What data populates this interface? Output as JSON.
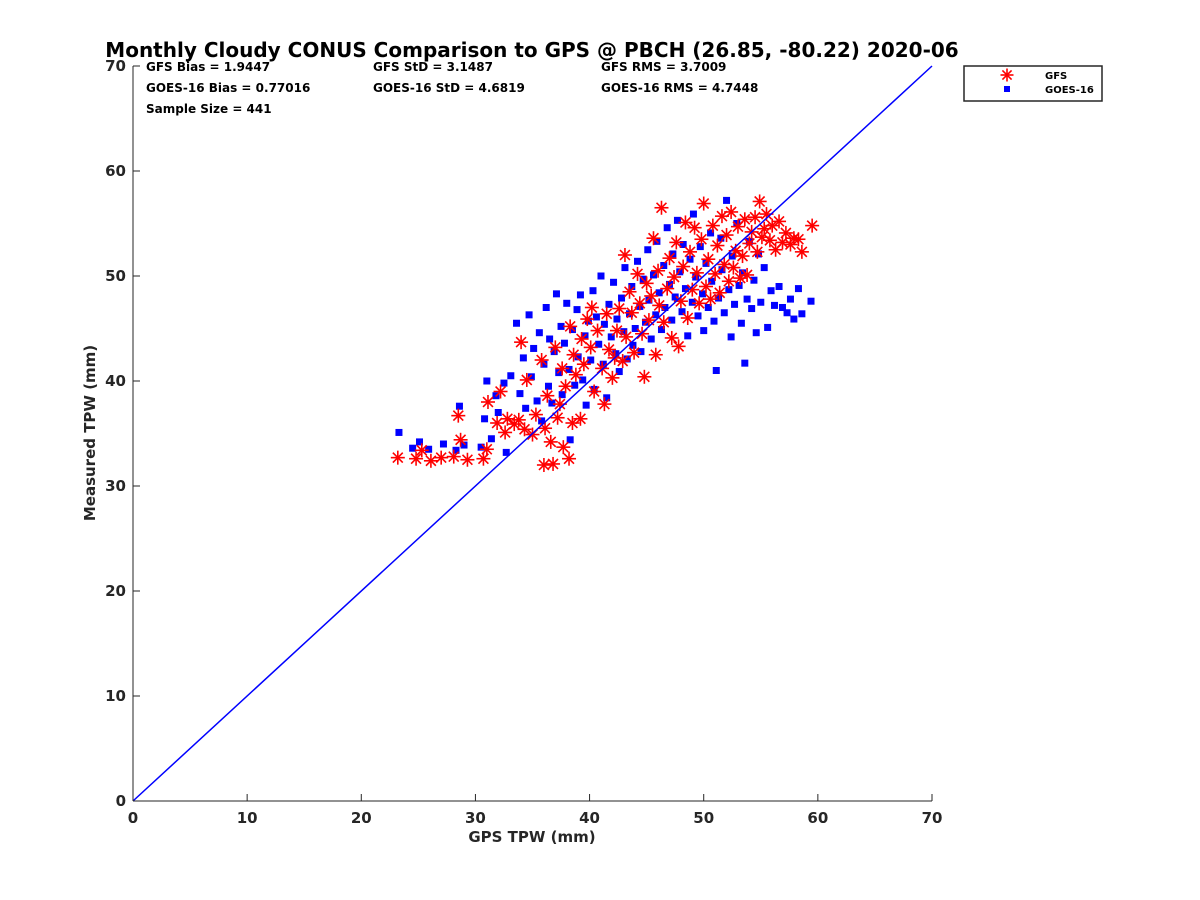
{
  "chart_data": {
    "type": "scatter",
    "title": "Monthly Cloudy CONUS Comparison to GPS @ PBCH (26.85, -80.22) 2020-06",
    "xlabel": "GPS TPW (mm)",
    "ylabel": "Measured TPW (mm)",
    "xlim": [
      0,
      70
    ],
    "ylim": [
      0,
      70
    ],
    "xticks": [
      0,
      10,
      20,
      30,
      40,
      50,
      60,
      70
    ],
    "yticks": [
      0,
      10,
      20,
      30,
      40,
      50,
      60,
      70
    ],
    "grid": false,
    "legend_position": "top-right, outside",
    "reference_line": {
      "name": "1:1 line",
      "x": [
        0,
        70
      ],
      "y": [
        0,
        70
      ],
      "color": "#0000ff"
    },
    "stats": {
      "gfs_bias": "GFS Bias = 1.9447",
      "gfs_std": "GFS StD = 3.1487",
      "gfs_rms": "GFS RMS = 3.7009",
      "goes_bias": "GOES-16 Bias = 0.77016",
      "goes_std": "GOES-16 StD = 4.6819",
      "goes_rms": "GOES-16 RMS = 4.7448",
      "sample_size": "Sample Size = 441"
    },
    "series": [
      {
        "name": "GFS",
        "marker": "asterisk",
        "color": "#ff0000",
        "points": [
          [
            23.2,
            32.7
          ],
          [
            24.8,
            32.6
          ],
          [
            25.3,
            33.4
          ],
          [
            26.1,
            32.4
          ],
          [
            27.0,
            32.7
          ],
          [
            28.1,
            32.8
          ],
          [
            28.5,
            36.7
          ],
          [
            28.7,
            34.4
          ],
          [
            29.3,
            32.5
          ],
          [
            30.7,
            32.6
          ],
          [
            31.0,
            33.5
          ],
          [
            31.1,
            38.0
          ],
          [
            31.9,
            36.0
          ],
          [
            32.2,
            39.0
          ],
          [
            32.6,
            35.1
          ],
          [
            32.8,
            36.4
          ],
          [
            33.4,
            35.9
          ],
          [
            33.8,
            36.3
          ],
          [
            34.0,
            43.7
          ],
          [
            34.3,
            35.4
          ],
          [
            34.5,
            40.1
          ],
          [
            35.0,
            34.9
          ],
          [
            35.3,
            36.8
          ],
          [
            35.8,
            42.0
          ],
          [
            36.0,
            32.0
          ],
          [
            36.1,
            35.5
          ],
          [
            36.3,
            38.6
          ],
          [
            36.6,
            34.2
          ],
          [
            36.8,
            32.1
          ],
          [
            37.0,
            43.2
          ],
          [
            37.2,
            36.5
          ],
          [
            37.4,
            37.8
          ],
          [
            37.6,
            41.2
          ],
          [
            37.7,
            33.7
          ],
          [
            37.9,
            39.5
          ],
          [
            38.2,
            32.6
          ],
          [
            38.3,
            45.2
          ],
          [
            38.5,
            36.0
          ],
          [
            38.6,
            42.5
          ],
          [
            38.8,
            40.6
          ],
          [
            39.2,
            36.4
          ],
          [
            39.3,
            44.0
          ],
          [
            39.5,
            41.6
          ],
          [
            39.8,
            45.9
          ],
          [
            40.1,
            43.2
          ],
          [
            40.2,
            47.0
          ],
          [
            40.4,
            39.0
          ],
          [
            40.7,
            44.8
          ],
          [
            41.1,
            41.2
          ],
          [
            41.3,
            37.8
          ],
          [
            41.5,
            46.4
          ],
          [
            41.7,
            43.0
          ],
          [
            42.0,
            40.3
          ],
          [
            42.2,
            42.2
          ],
          [
            42.4,
            44.8
          ],
          [
            42.6,
            46.9
          ],
          [
            42.9,
            41.9
          ],
          [
            43.1,
            52.0
          ],
          [
            43.2,
            44.2
          ],
          [
            43.5,
            48.5
          ],
          [
            43.7,
            46.5
          ],
          [
            43.9,
            42.7
          ],
          [
            44.2,
            50.2
          ],
          [
            44.4,
            47.4
          ],
          [
            44.6,
            44.5
          ],
          [
            44.8,
            40.4
          ],
          [
            45.0,
            49.3
          ],
          [
            45.2,
            45.8
          ],
          [
            45.4,
            48.1
          ],
          [
            45.6,
            53.6
          ],
          [
            45.8,
            42.5
          ],
          [
            46.0,
            50.5
          ],
          [
            46.1,
            47.2
          ],
          [
            46.3,
            56.5
          ],
          [
            46.5,
            45.6
          ],
          [
            46.8,
            48.8
          ],
          [
            47.0,
            51.7
          ],
          [
            47.2,
            44.1
          ],
          [
            47.4,
            49.9
          ],
          [
            47.6,
            53.2
          ],
          [
            47.8,
            43.3
          ],
          [
            48.0,
            47.6
          ],
          [
            48.2,
            50.9
          ],
          [
            48.4,
            55.1
          ],
          [
            48.6,
            46.0
          ],
          [
            48.8,
            52.3
          ],
          [
            49.0,
            48.7
          ],
          [
            49.2,
            54.6
          ],
          [
            49.4,
            50.3
          ],
          [
            49.6,
            47.4
          ],
          [
            49.8,
            53.5
          ],
          [
            50.0,
            56.9
          ],
          [
            50.2,
            49.0
          ],
          [
            50.4,
            51.6
          ],
          [
            50.6,
            47.8
          ],
          [
            50.8,
            54.8
          ],
          [
            51.0,
            50.2
          ],
          [
            51.2,
            52.9
          ],
          [
            51.4,
            48.4
          ],
          [
            51.6,
            55.7
          ],
          [
            51.8,
            51.1
          ],
          [
            52.0,
            53.9
          ],
          [
            52.2,
            49.5
          ],
          [
            52.4,
            56.1
          ],
          [
            52.6,
            50.8
          ],
          [
            52.8,
            52.4
          ],
          [
            53.0,
            54.7
          ],
          [
            53.2,
            49.8
          ],
          [
            53.4,
            51.9
          ],
          [
            53.6,
            55.4
          ],
          [
            53.8,
            50.1
          ],
          [
            54.0,
            53.1
          ],
          [
            54.2,
            54.2
          ],
          [
            54.5,
            55.6
          ],
          [
            54.7,
            52.3
          ],
          [
            54.9,
            57.1
          ],
          [
            55.1,
            53.7
          ],
          [
            55.3,
            54.5
          ],
          [
            55.5,
            55.9
          ],
          [
            55.8,
            53.4
          ],
          [
            56.0,
            54.8
          ],
          [
            56.3,
            52.5
          ],
          [
            56.6,
            55.2
          ],
          [
            56.9,
            53.2
          ],
          [
            57.2,
            54.1
          ],
          [
            57.6,
            53.0
          ],
          [
            57.9,
            53.6
          ],
          [
            58.3,
            53.5
          ],
          [
            58.6,
            52.3
          ],
          [
            59.5,
            54.8
          ]
        ]
      },
      {
        "name": "GOES-16",
        "marker": "square",
        "color": "#0000ff",
        "points": [
          [
            23.3,
            35.1
          ],
          [
            24.5,
            33.6
          ],
          [
            25.1,
            34.2
          ],
          [
            25.9,
            33.5
          ],
          [
            27.2,
            34.0
          ],
          [
            28.3,
            33.4
          ],
          [
            28.6,
            37.6
          ],
          [
            29.0,
            33.9
          ],
          [
            30.5,
            33.7
          ],
          [
            30.8,
            36.4
          ],
          [
            31.0,
            40.0
          ],
          [
            31.4,
            34.5
          ],
          [
            31.8,
            38.6
          ],
          [
            32.0,
            37.0
          ],
          [
            32.5,
            39.8
          ],
          [
            32.7,
            33.2
          ],
          [
            33.1,
            40.5
          ],
          [
            33.6,
            45.5
          ],
          [
            33.9,
            38.8
          ],
          [
            34.2,
            42.2
          ],
          [
            34.4,
            37.4
          ],
          [
            34.7,
            46.3
          ],
          [
            34.9,
            40.4
          ],
          [
            35.1,
            43.1
          ],
          [
            35.4,
            38.1
          ],
          [
            35.6,
            44.6
          ],
          [
            35.8,
            36.2
          ],
          [
            36.0,
            41.6
          ],
          [
            36.2,
            47.0
          ],
          [
            36.4,
            39.5
          ],
          [
            36.5,
            44.0
          ],
          [
            36.7,
            37.9
          ],
          [
            36.9,
            42.8
          ],
          [
            37.1,
            48.3
          ],
          [
            37.3,
            40.8
          ],
          [
            37.5,
            45.2
          ],
          [
            37.6,
            38.7
          ],
          [
            37.8,
            43.6
          ],
          [
            38.0,
            47.4
          ],
          [
            38.2,
            41.1
          ],
          [
            38.3,
            34.4
          ],
          [
            38.5,
            44.9
          ],
          [
            38.7,
            39.6
          ],
          [
            38.9,
            46.8
          ],
          [
            39.0,
            42.3
          ],
          [
            39.2,
            48.2
          ],
          [
            39.4,
            40.1
          ],
          [
            39.6,
            44.3
          ],
          [
            39.7,
            37.7
          ],
          [
            39.9,
            45.7
          ],
          [
            40.1,
            42.0
          ],
          [
            40.3,
            48.6
          ],
          [
            40.4,
            39.2
          ],
          [
            40.6,
            46.1
          ],
          [
            40.8,
            43.5
          ],
          [
            41.0,
            50.0
          ],
          [
            41.2,
            41.6
          ],
          [
            41.3,
            45.4
          ],
          [
            41.5,
            38.4
          ],
          [
            41.7,
            47.3
          ],
          [
            41.9,
            44.2
          ],
          [
            42.1,
            49.4
          ],
          [
            42.3,
            42.6
          ],
          [
            42.4,
            45.9
          ],
          [
            42.6,
            40.9
          ],
          [
            42.8,
            47.9
          ],
          [
            43.0,
            44.7
          ],
          [
            43.1,
            50.8
          ],
          [
            43.3,
            42.1
          ],
          [
            43.5,
            46.4
          ],
          [
            43.7,
            49.0
          ],
          [
            43.8,
            43.4
          ],
          [
            44.0,
            45.0
          ],
          [
            44.2,
            51.4
          ],
          [
            44.4,
            47.1
          ],
          [
            44.5,
            42.8
          ],
          [
            44.7,
            49.7
          ],
          [
            44.9,
            45.6
          ],
          [
            45.1,
            52.5
          ],
          [
            45.2,
            47.7
          ],
          [
            45.4,
            44.0
          ],
          [
            45.6,
            50.1
          ],
          [
            45.8,
            46.3
          ],
          [
            45.9,
            53.3
          ],
          [
            46.1,
            48.4
          ],
          [
            46.3,
            44.9
          ],
          [
            46.5,
            51.0
          ],
          [
            46.6,
            47.0
          ],
          [
            46.8,
            54.6
          ],
          [
            47.0,
            49.2
          ],
          [
            47.2,
            45.8
          ],
          [
            47.3,
            52.1
          ],
          [
            47.5,
            48.0
          ],
          [
            47.7,
            55.3
          ],
          [
            47.9,
            50.4
          ],
          [
            48.1,
            46.6
          ],
          [
            48.2,
            53.0
          ],
          [
            48.4,
            48.8
          ],
          [
            48.6,
            44.3
          ],
          [
            48.8,
            51.6
          ],
          [
            49.0,
            47.5
          ],
          [
            49.1,
            55.9
          ],
          [
            49.3,
            49.9
          ],
          [
            49.5,
            46.2
          ],
          [
            49.7,
            52.8
          ],
          [
            49.9,
            48.3
          ],
          [
            50.0,
            44.8
          ],
          [
            50.2,
            51.2
          ],
          [
            50.4,
            47.0
          ],
          [
            50.6,
            54.1
          ],
          [
            50.7,
            49.5
          ],
          [
            50.9,
            45.7
          ],
          [
            51.1,
            41.0
          ],
          [
            51.3,
            47.9
          ],
          [
            51.5,
            53.6
          ],
          [
            51.6,
            50.6
          ],
          [
            51.8,
            46.5
          ],
          [
            52.0,
            57.2
          ],
          [
            52.2,
            48.7
          ],
          [
            52.4,
            44.2
          ],
          [
            52.5,
            51.9
          ],
          [
            52.7,
            47.3
          ],
          [
            52.9,
            55.0
          ],
          [
            53.1,
            49.1
          ],
          [
            53.3,
            45.5
          ],
          [
            53.4,
            50.3
          ],
          [
            53.6,
            41.7
          ],
          [
            53.8,
            47.8
          ],
          [
            54.0,
            53.3
          ],
          [
            54.2,
            46.9
          ],
          [
            54.4,
            49.6
          ],
          [
            54.6,
            44.6
          ],
          [
            54.8,
            52.1
          ],
          [
            55.0,
            47.5
          ],
          [
            55.3,
            50.8
          ],
          [
            55.6,
            45.1
          ],
          [
            55.9,
            48.6
          ],
          [
            56.2,
            47.2
          ],
          [
            56.6,
            49.0
          ],
          [
            56.9,
            47.0
          ],
          [
            57.3,
            46.5
          ],
          [
            57.6,
            47.8
          ],
          [
            57.9,
            45.9
          ],
          [
            58.3,
            48.8
          ],
          [
            58.6,
            46.4
          ],
          [
            59.4,
            47.6
          ]
        ]
      }
    ]
  }
}
